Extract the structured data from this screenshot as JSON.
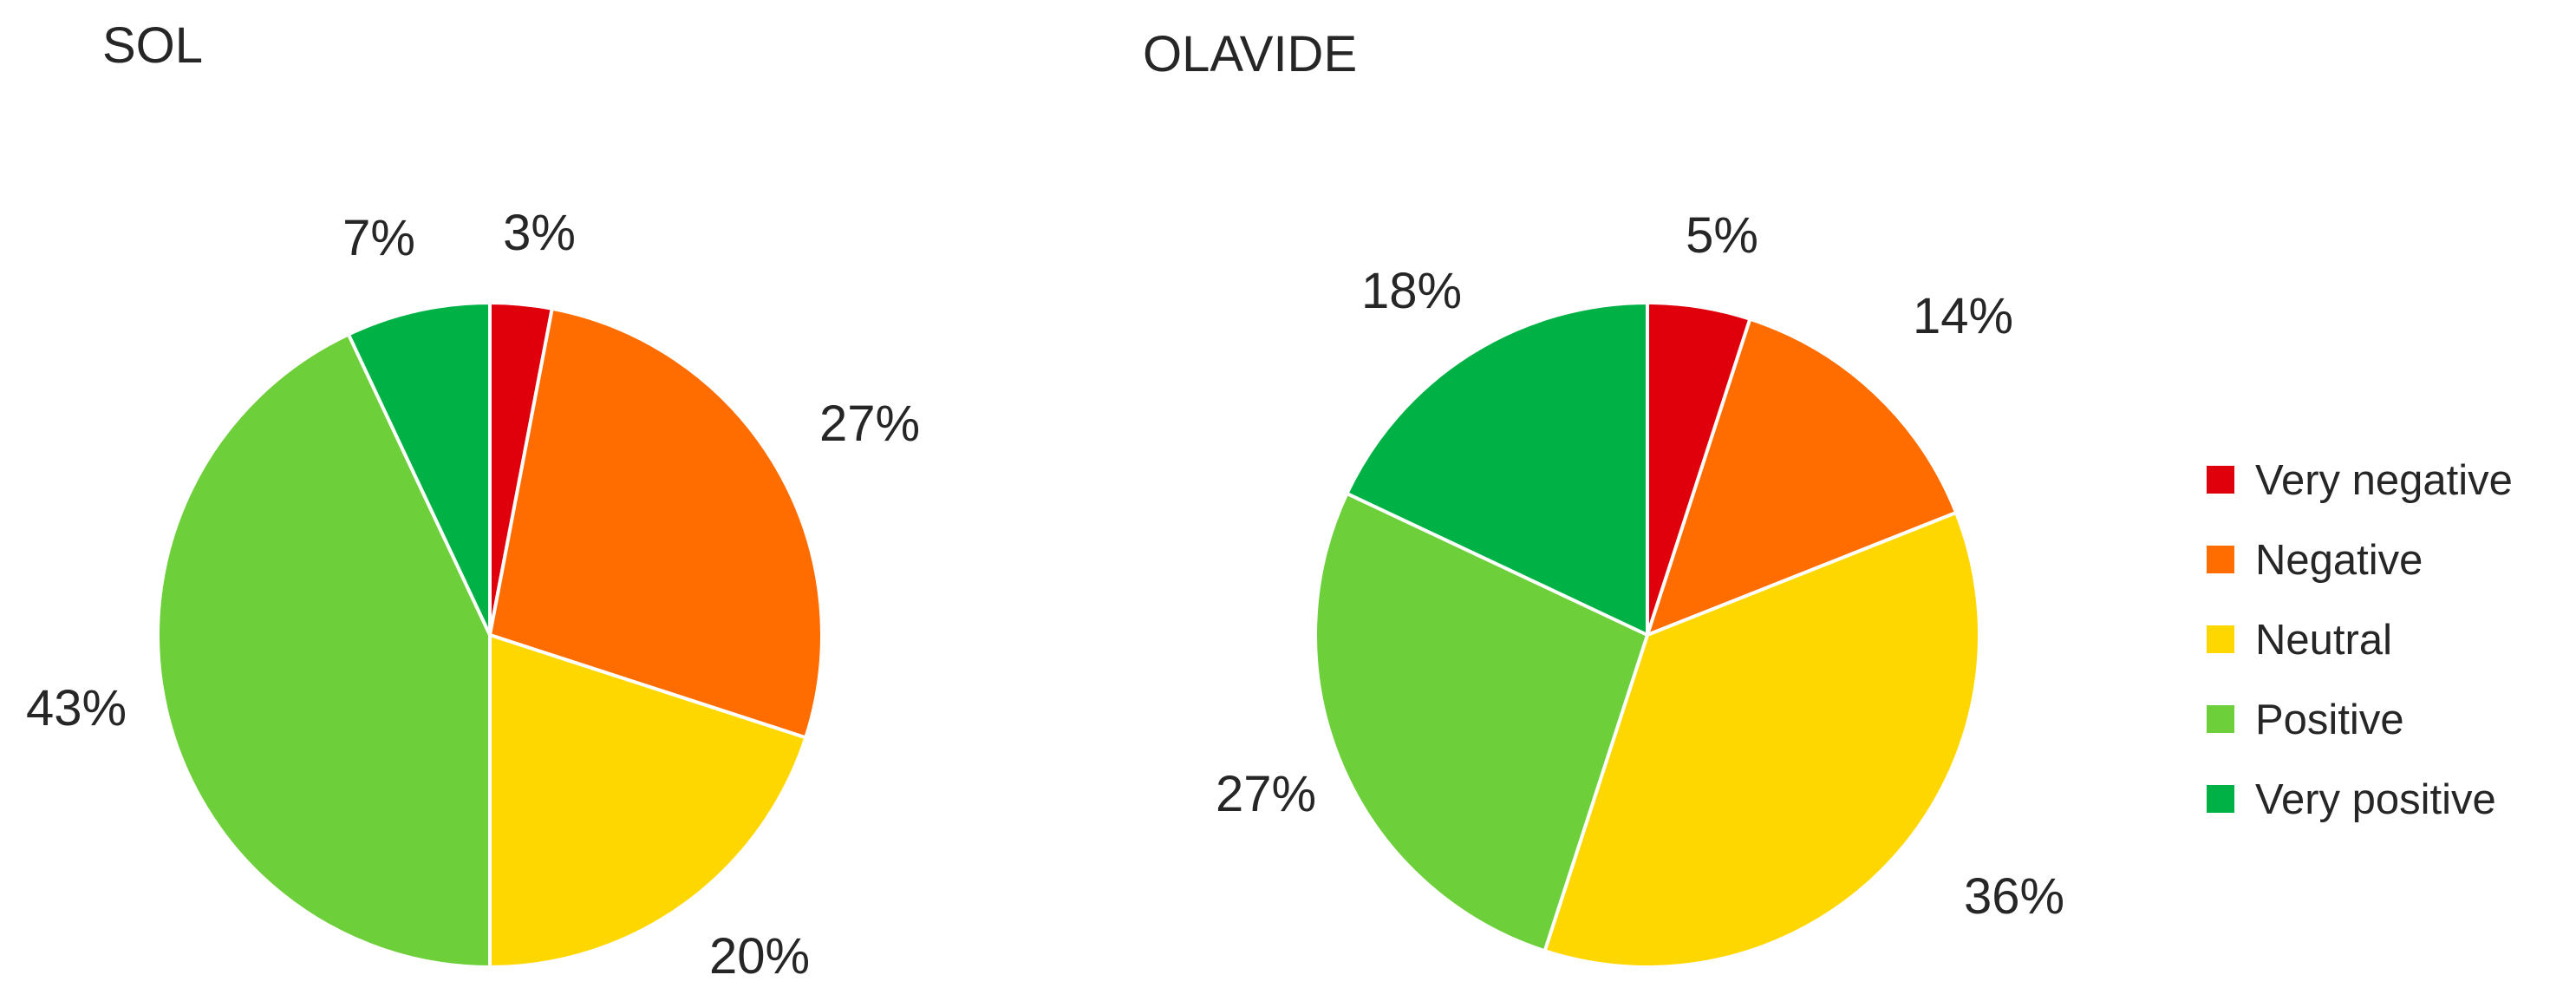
{
  "chart_data": [
    {
      "type": "pie",
      "title": "SOL",
      "categories": [
        "Very negative",
        "Negative",
        "Neutral",
        "Positive",
        "Very positive"
      ],
      "values": [
        3,
        27,
        20,
        43,
        7
      ],
      "value_labels": [
        "3%",
        "27%",
        "20%",
        "43%",
        "7%"
      ],
      "colors": [
        "#e0000b",
        "#ff6d00",
        "#ffd700",
        "#6dd03b",
        "#00b246"
      ],
      "start_angle_deg": 0,
      "direction": "clockwise"
    },
    {
      "type": "pie",
      "title": "OLAVIDE",
      "categories": [
        "Very negative",
        "Negative",
        "Neutral",
        "Positive",
        "Very positive"
      ],
      "values": [
        5,
        14,
        36,
        27,
        18
      ],
      "value_labels": [
        "5%",
        "14%",
        "36%",
        "27%",
        "18%"
      ],
      "colors": [
        "#e0000b",
        "#ff6d00",
        "#ffd700",
        "#6dd03b",
        "#00b246"
      ],
      "start_angle_deg": 0,
      "direction": "clockwise"
    }
  ],
  "legend": {
    "placement": "right",
    "items": [
      {
        "label": "Very negative",
        "color": "#e0000b"
      },
      {
        "label": "Negative",
        "color": "#ff6d00"
      },
      {
        "label": "Neutral",
        "color": "#ffd700"
      },
      {
        "label": "Positive",
        "color": "#6dd03b"
      },
      {
        "label": "Very positive",
        "color": "#00b246"
      }
    ]
  }
}
